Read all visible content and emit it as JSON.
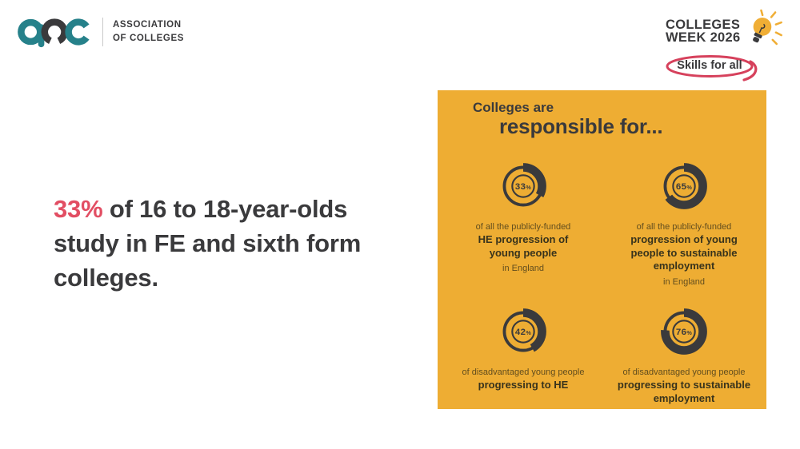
{
  "colors": {
    "teal": "#26818A",
    "charcoal": "#3A3A3C",
    "pink": "#E24E63",
    "panel_yellow": "#EEAD33",
    "bulb_yellow": "#F0AE35",
    "circle_red": "#D6415C",
    "divider_gray": "#C9C9C9",
    "caption_muted": "rgba(43,40,22,0.72)",
    "caption_dark": "#38331C"
  },
  "aoc_logo": {
    "org_line1": "ASSOCIATION",
    "org_line2": "OF COLLEGES"
  },
  "colleges_week": {
    "line1": "COLLEGES",
    "line2": "WEEK 2026",
    "tagline": "Skills for all"
  },
  "headline": {
    "highlight": "33%",
    "line1_rest": " of 16 to 18-year-olds",
    "line2": "study in FE and sixth form",
    "line3": "colleges."
  },
  "infographic": {
    "title_line1": "Colleges are",
    "title_line2": "responsible for...",
    "stats": [
      {
        "value": 33,
        "suffix": "%",
        "pre": "of all the publicly-funded",
        "main": "HE progression of\nyoung people",
        "post": "in England"
      },
      {
        "value": 65,
        "suffix": "%",
        "pre": "of all the publicly-funded",
        "main": "progression of young\npeople to sustainable\nemployment",
        "post": "in England"
      },
      {
        "value": 42,
        "suffix": "%",
        "pre": "of disadvantaged young people",
        "main": "progressing to HE"
      },
      {
        "value": 76,
        "suffix": "%",
        "pre": "of disadvantaged young people",
        "main": "progressing to sustainable\nemployment"
      }
    ]
  },
  "chart_data": {
    "type": "pie",
    "title": "Colleges are responsible for...",
    "series": [
      {
        "name": "of all the publicly-funded HE progression of young people in England",
        "value_pct": 33
      },
      {
        "name": "of all the publicly-funded progression of young people to sustainable employment in England",
        "value_pct": 65
      },
      {
        "name": "of disadvantaged young people progressing to HE",
        "value_pct": 42
      },
      {
        "name": "of disadvantaged young people progressing to sustainable employment",
        "value_pct": 76
      }
    ]
  }
}
